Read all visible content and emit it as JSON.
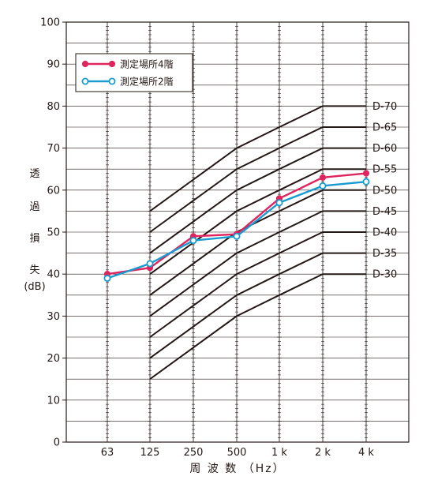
{
  "chart_data": {
    "type": "line",
    "xlabel": "周 波 数 （Hz）",
    "ylabel_chars": [
      "透",
      "過",
      "損",
      "失",
      "(dB)"
    ],
    "ylim": [
      0,
      100
    ],
    "yticks": [
      0,
      10,
      20,
      30,
      40,
      50,
      60,
      70,
      80,
      90,
      100
    ],
    "categories": [
      "63",
      "125",
      "250",
      "500",
      "1 k",
      "2 k",
      "4 k"
    ],
    "grid": "horizontal lines every 5 dB; minor ticks on vertical frequency lines",
    "legend_position": "top-left",
    "series": [
      {
        "name": "測定場所4階",
        "color": "#e0245e",
        "marker": "filled-circle",
        "values": [
          40,
          41.5,
          49,
          49.5,
          58,
          63,
          64
        ]
      },
      {
        "name": "測定場所2階",
        "color": "#1a9bd0",
        "marker": "open-circle",
        "values": [
          39,
          42.5,
          48,
          49,
          57,
          61,
          62
        ]
      }
    ],
    "reference_curves": [
      {
        "name": "D-70",
        "values": [
          null,
          55,
          62.5,
          70,
          75,
          80,
          80
        ]
      },
      {
        "name": "D-65",
        "values": [
          null,
          50,
          57.5,
          65,
          70,
          75,
          75
        ]
      },
      {
        "name": "D-60",
        "values": [
          null,
          45,
          52.5,
          60,
          65,
          70,
          70
        ]
      },
      {
        "name": "D-55",
        "values": [
          null,
          40,
          47.5,
          55,
          60,
          65,
          65
        ]
      },
      {
        "name": "D-50",
        "values": [
          null,
          35,
          42.5,
          50,
          55,
          60,
          60
        ]
      },
      {
        "name": "D-45",
        "values": [
          null,
          30,
          37.5,
          45,
          50,
          55,
          55
        ]
      },
      {
        "name": "D-40",
        "values": [
          null,
          25,
          32.5,
          40,
          45,
          50,
          50
        ]
      },
      {
        "name": "D-35",
        "values": [
          null,
          20,
          27.5,
          35,
          40,
          45,
          45
        ]
      },
      {
        "name": "D-30",
        "values": [
          null,
          15,
          22.5,
          30,
          35,
          40,
          40
        ]
      }
    ],
    "reference_color": "#231815"
  }
}
